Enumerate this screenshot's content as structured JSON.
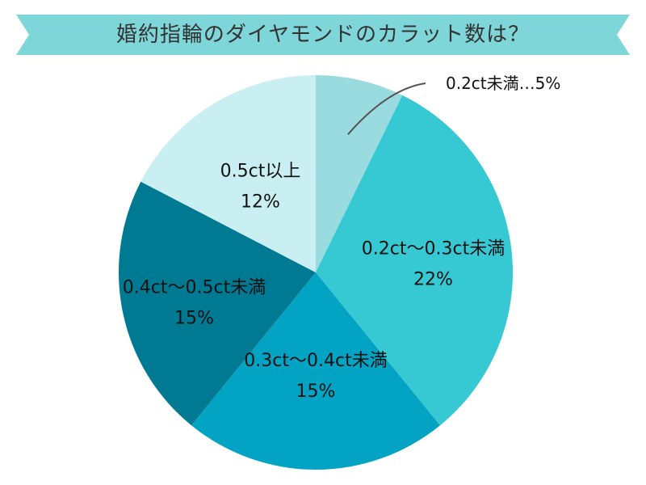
{
  "title": "婚約指輪のダイヤモンドのカラット数は？",
  "colors": {
    "banner": "#7fd6d8",
    "slices": [
      "#9adbdf",
      "#36c9d3",
      "#03a3c3",
      "#007a93",
      "#caeff3"
    ]
  },
  "chart_data": {
    "type": "pie",
    "title": "婚約指輪のダイヤモンドのカラット数は？",
    "start_angle_deg": 0,
    "direction": "clockwise",
    "slices": [
      {
        "label": "0.2ct未満",
        "value": 5,
        "value_text": "5%",
        "display": "0.2ct未満…5%"
      },
      {
        "label": "0.2ct〜0.3ct未満",
        "value": 22,
        "value_text": "22%"
      },
      {
        "label": "0.3ct〜0.4ct未満",
        "value": 15,
        "value_text": "15%"
      },
      {
        "label": "0.4ct〜0.5ct未満",
        "value": 15,
        "value_text": "15%"
      },
      {
        "label": "0.5ct以上",
        "value": 12,
        "value_text": "12%"
      }
    ]
  }
}
